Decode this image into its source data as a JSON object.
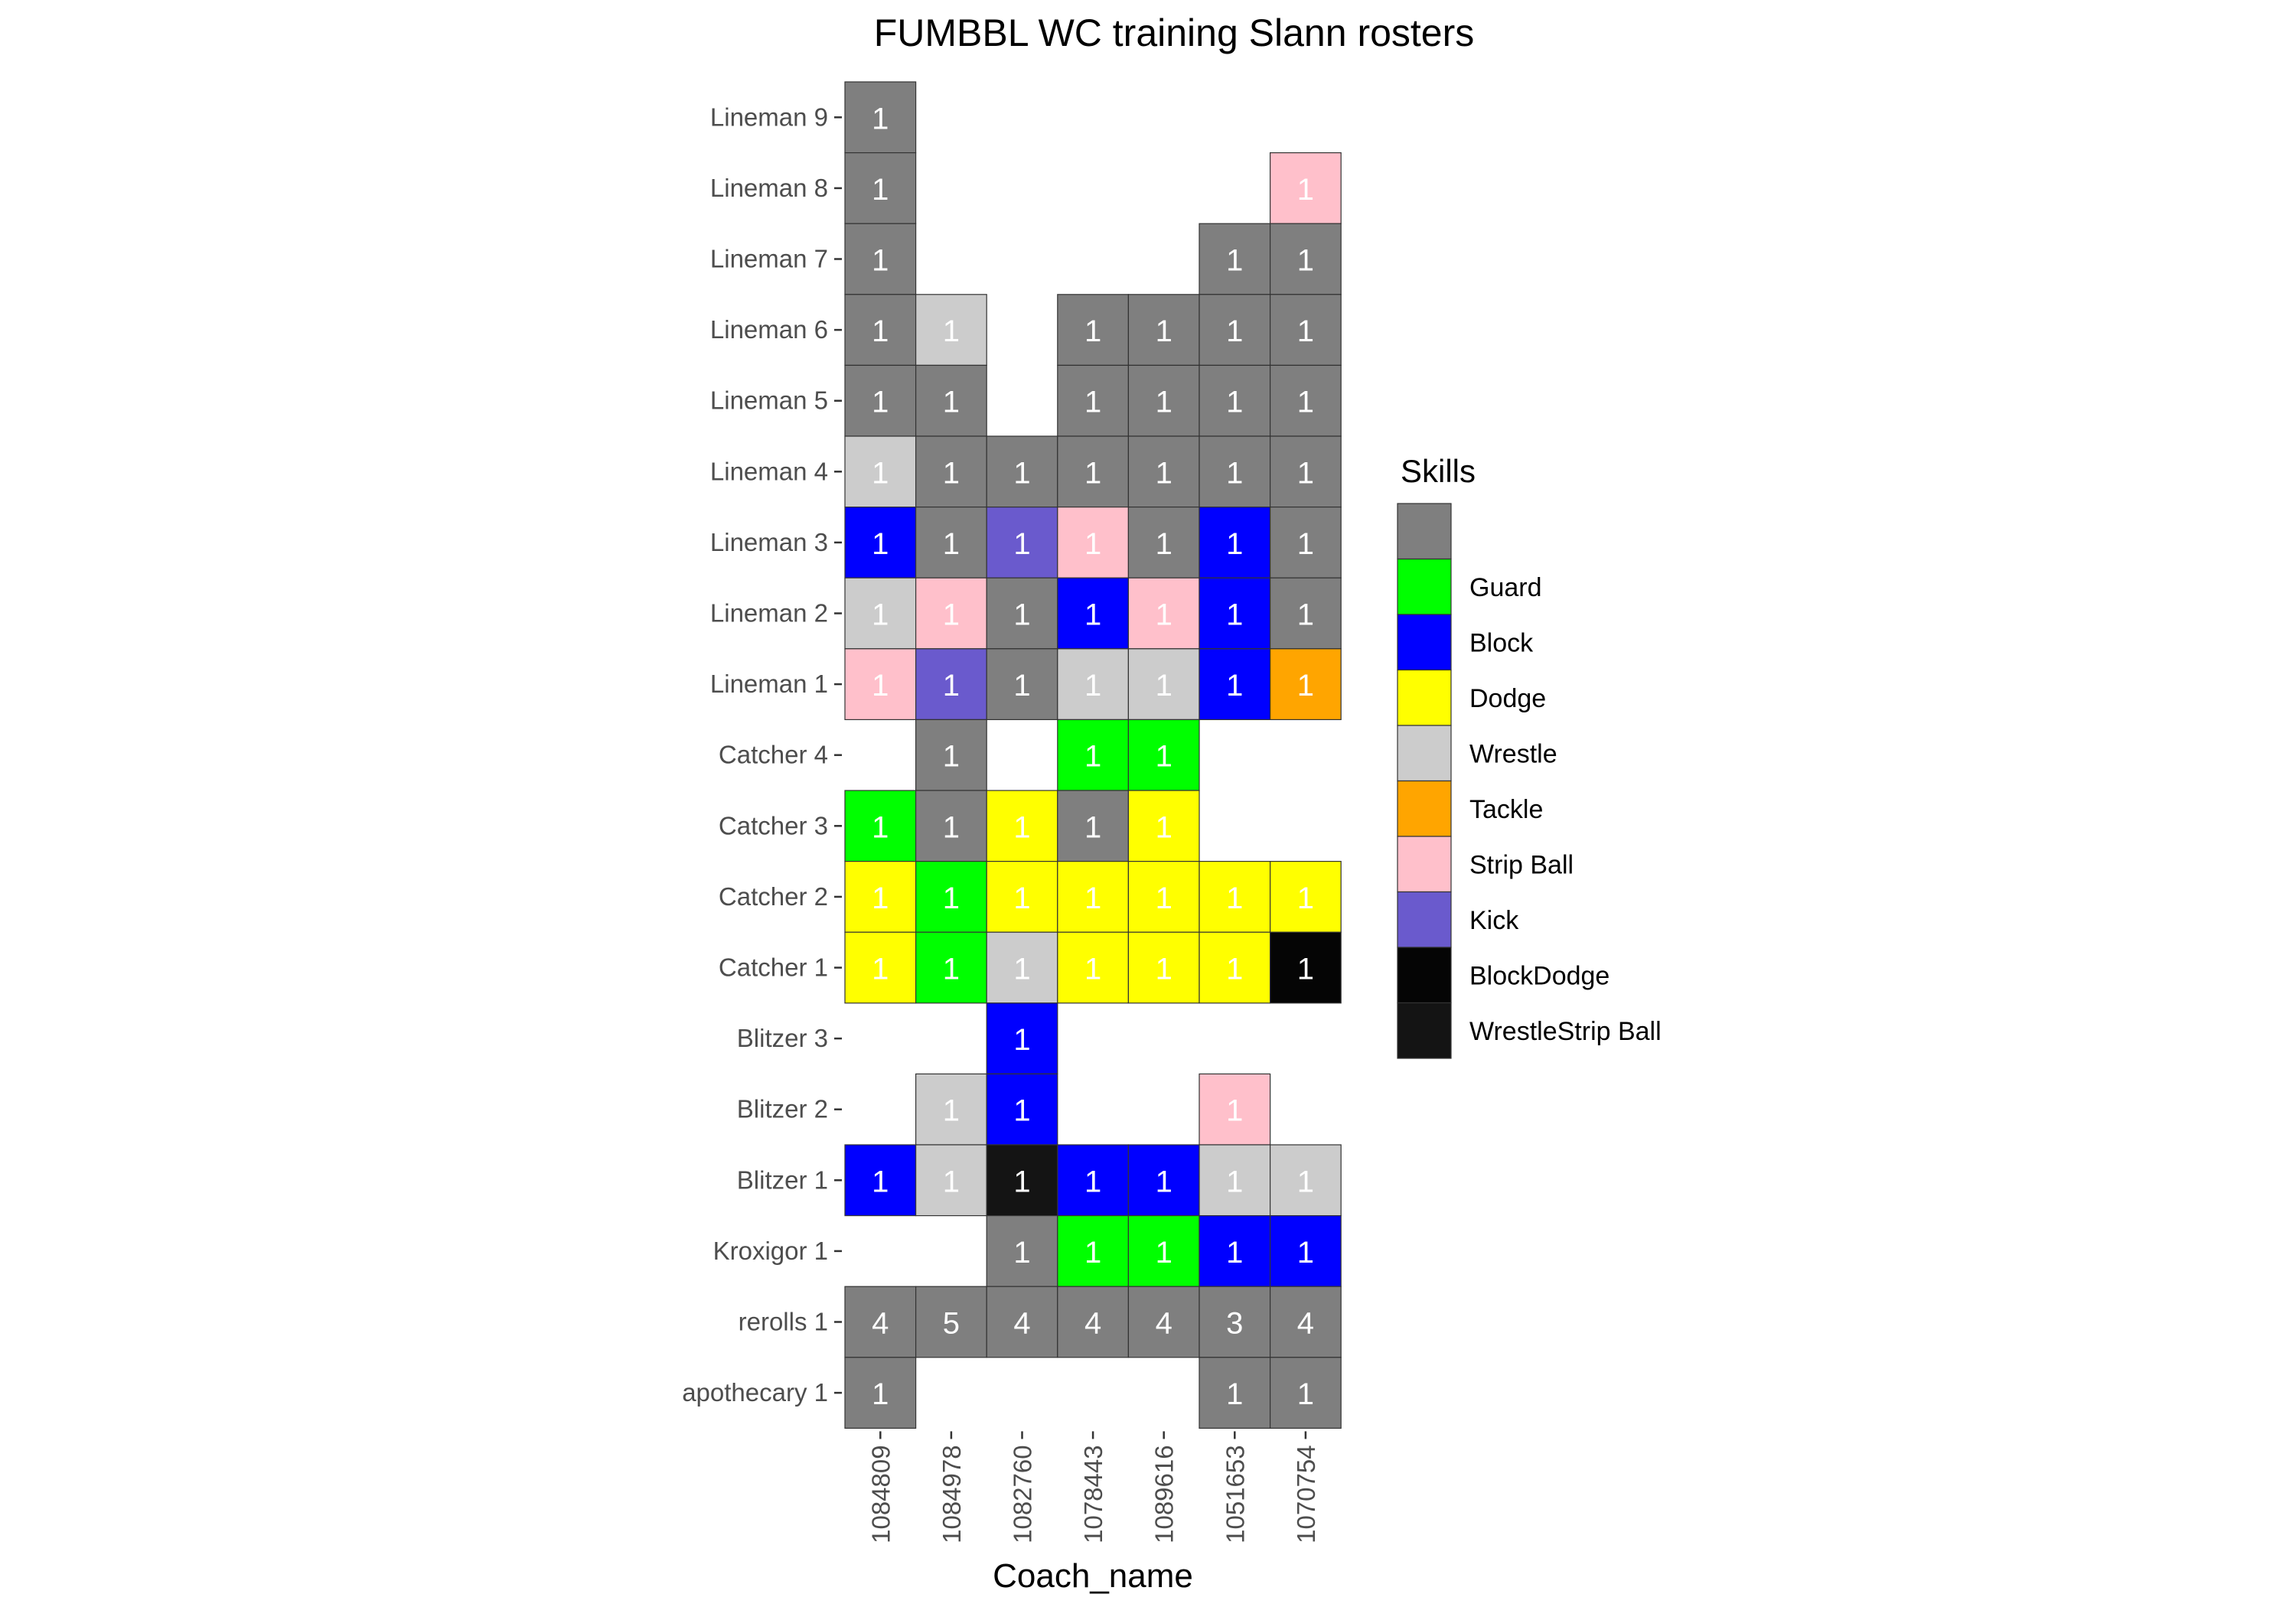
{
  "chart_data": {
    "type": "heatmap",
    "title": "FUMBBL WC training Slann rosters",
    "xlabel": "Coach_name",
    "ylabel": "",
    "x_categories": [
      "1084809",
      "1084978",
      "1082760",
      "1078443",
      "1089616",
      "1051653",
      "1070754"
    ],
    "y_categories": [
      "Lineman 9",
      "Lineman 8",
      "Lineman 7",
      "Lineman 6",
      "Lineman 5",
      "Lineman 4",
      "Lineman 3",
      "Lineman 2",
      "Lineman 1",
      "Catcher 4",
      "Catcher 3",
      "Catcher 2",
      "Catcher 1",
      "Blitzer 3",
      "Blitzer 2",
      "Blitzer 1",
      "Kroxigor 1",
      "rerolls 1",
      "apothecary 1"
    ],
    "legend": {
      "title": "Skills",
      "position": "right",
      "entries": [
        {
          "key": "none",
          "label": "",
          "color": "#7f7f7f"
        },
        {
          "key": "Guard",
          "label": "Guard",
          "color": "#00ff00"
        },
        {
          "key": "Block",
          "label": "Block",
          "color": "#0000ff"
        },
        {
          "key": "Dodge",
          "label": "Dodge",
          "color": "#ffff00"
        },
        {
          "key": "Wrestle",
          "label": "Wrestle",
          "color": "#cccccc"
        },
        {
          "key": "Tackle",
          "label": "Tackle",
          "color": "#ffa500"
        },
        {
          "key": "Strip Ball",
          "label": "Strip Ball",
          "color": "#ffc0cb"
        },
        {
          "key": "Kick",
          "label": "Kick",
          "color": "#6a5acd"
        },
        {
          "key": "BlockDodge",
          "label": "BlockDodge",
          "color": "#050505"
        },
        {
          "key": "WrestleStrip Ball",
          "label": "WrestleStrip Ball",
          "color": "#141414"
        }
      ]
    },
    "cells": [
      {
        "x": "1084809",
        "y": "Lineman 9",
        "value": 1,
        "skill": "none"
      },
      {
        "x": "1084809",
        "y": "Lineman 8",
        "value": 1,
        "skill": "none"
      },
      {
        "x": "1070754",
        "y": "Lineman 8",
        "value": 1,
        "skill": "Strip Ball"
      },
      {
        "x": "1084809",
        "y": "Lineman 7",
        "value": 1,
        "skill": "none"
      },
      {
        "x": "1051653",
        "y": "Lineman 7",
        "value": 1,
        "skill": "none"
      },
      {
        "x": "1070754",
        "y": "Lineman 7",
        "value": 1,
        "skill": "none"
      },
      {
        "x": "1084809",
        "y": "Lineman 6",
        "value": 1,
        "skill": "none"
      },
      {
        "x": "1084978",
        "y": "Lineman 6",
        "value": 1,
        "skill": "Wrestle"
      },
      {
        "x": "1078443",
        "y": "Lineman 6",
        "value": 1,
        "skill": "none"
      },
      {
        "x": "1089616",
        "y": "Lineman 6",
        "value": 1,
        "skill": "none"
      },
      {
        "x": "1051653",
        "y": "Lineman 6",
        "value": 1,
        "skill": "none"
      },
      {
        "x": "1070754",
        "y": "Lineman 6",
        "value": 1,
        "skill": "none"
      },
      {
        "x": "1084809",
        "y": "Lineman 5",
        "value": 1,
        "skill": "none"
      },
      {
        "x": "1084978",
        "y": "Lineman 5",
        "value": 1,
        "skill": "none"
      },
      {
        "x": "1078443",
        "y": "Lineman 5",
        "value": 1,
        "skill": "none"
      },
      {
        "x": "1089616",
        "y": "Lineman 5",
        "value": 1,
        "skill": "none"
      },
      {
        "x": "1051653",
        "y": "Lineman 5",
        "value": 1,
        "skill": "none"
      },
      {
        "x": "1070754",
        "y": "Lineman 5",
        "value": 1,
        "skill": "none"
      },
      {
        "x": "1084809",
        "y": "Lineman 4",
        "value": 1,
        "skill": "Wrestle"
      },
      {
        "x": "1084978",
        "y": "Lineman 4",
        "value": 1,
        "skill": "none"
      },
      {
        "x": "1082760",
        "y": "Lineman 4",
        "value": 1,
        "skill": "none"
      },
      {
        "x": "1078443",
        "y": "Lineman 4",
        "value": 1,
        "skill": "none"
      },
      {
        "x": "1089616",
        "y": "Lineman 4",
        "value": 1,
        "skill": "none"
      },
      {
        "x": "1051653",
        "y": "Lineman 4",
        "value": 1,
        "skill": "none"
      },
      {
        "x": "1070754",
        "y": "Lineman 4",
        "value": 1,
        "skill": "none"
      },
      {
        "x": "1084809",
        "y": "Lineman 3",
        "value": 1,
        "skill": "Block"
      },
      {
        "x": "1084978",
        "y": "Lineman 3",
        "value": 1,
        "skill": "none"
      },
      {
        "x": "1082760",
        "y": "Lineman 3",
        "value": 1,
        "skill": "Kick"
      },
      {
        "x": "1078443",
        "y": "Lineman 3",
        "value": 1,
        "skill": "Strip Ball"
      },
      {
        "x": "1089616",
        "y": "Lineman 3",
        "value": 1,
        "skill": "none"
      },
      {
        "x": "1051653",
        "y": "Lineman 3",
        "value": 1,
        "skill": "Block"
      },
      {
        "x": "1070754",
        "y": "Lineman 3",
        "value": 1,
        "skill": "none"
      },
      {
        "x": "1084809",
        "y": "Lineman 2",
        "value": 1,
        "skill": "Wrestle"
      },
      {
        "x": "1084978",
        "y": "Lineman 2",
        "value": 1,
        "skill": "Strip Ball"
      },
      {
        "x": "1082760",
        "y": "Lineman 2",
        "value": 1,
        "skill": "none"
      },
      {
        "x": "1078443",
        "y": "Lineman 2",
        "value": 1,
        "skill": "Block"
      },
      {
        "x": "1089616",
        "y": "Lineman 2",
        "value": 1,
        "skill": "Strip Ball"
      },
      {
        "x": "1051653",
        "y": "Lineman 2",
        "value": 1,
        "skill": "Block"
      },
      {
        "x": "1070754",
        "y": "Lineman 2",
        "value": 1,
        "skill": "none"
      },
      {
        "x": "1084809",
        "y": "Lineman 1",
        "value": 1,
        "skill": "Strip Ball"
      },
      {
        "x": "1084978",
        "y": "Lineman 1",
        "value": 1,
        "skill": "Kick"
      },
      {
        "x": "1082760",
        "y": "Lineman 1",
        "value": 1,
        "skill": "none"
      },
      {
        "x": "1078443",
        "y": "Lineman 1",
        "value": 1,
        "skill": "Wrestle"
      },
      {
        "x": "1089616",
        "y": "Lineman 1",
        "value": 1,
        "skill": "Wrestle"
      },
      {
        "x": "1051653",
        "y": "Lineman 1",
        "value": 1,
        "skill": "Block"
      },
      {
        "x": "1070754",
        "y": "Lineman 1",
        "value": 1,
        "skill": "Tackle"
      },
      {
        "x": "1084978",
        "y": "Catcher 4",
        "value": 1,
        "skill": "none"
      },
      {
        "x": "1078443",
        "y": "Catcher 4",
        "value": 1,
        "skill": "Guard"
      },
      {
        "x": "1089616",
        "y": "Catcher 4",
        "value": 1,
        "skill": "Guard"
      },
      {
        "x": "1084809",
        "y": "Catcher 3",
        "value": 1,
        "skill": "Guard"
      },
      {
        "x": "1084978",
        "y": "Catcher 3",
        "value": 1,
        "skill": "none"
      },
      {
        "x": "1082760",
        "y": "Catcher 3",
        "value": 1,
        "skill": "Dodge"
      },
      {
        "x": "1078443",
        "y": "Catcher 3",
        "value": 1,
        "skill": "none"
      },
      {
        "x": "1089616",
        "y": "Catcher 3",
        "value": 1,
        "skill": "Dodge"
      },
      {
        "x": "1084809",
        "y": "Catcher 2",
        "value": 1,
        "skill": "Dodge"
      },
      {
        "x": "1084978",
        "y": "Catcher 2",
        "value": 1,
        "skill": "Guard"
      },
      {
        "x": "1082760",
        "y": "Catcher 2",
        "value": 1,
        "skill": "Dodge"
      },
      {
        "x": "1078443",
        "y": "Catcher 2",
        "value": 1,
        "skill": "Dodge"
      },
      {
        "x": "1089616",
        "y": "Catcher 2",
        "value": 1,
        "skill": "Dodge"
      },
      {
        "x": "1051653",
        "y": "Catcher 2",
        "value": 1,
        "skill": "Dodge"
      },
      {
        "x": "1070754",
        "y": "Catcher 2",
        "value": 1,
        "skill": "Dodge"
      },
      {
        "x": "1084809",
        "y": "Catcher 1",
        "value": 1,
        "skill": "Dodge"
      },
      {
        "x": "1084978",
        "y": "Catcher 1",
        "value": 1,
        "skill": "Guard"
      },
      {
        "x": "1082760",
        "y": "Catcher 1",
        "value": 1,
        "skill": "Wrestle"
      },
      {
        "x": "1078443",
        "y": "Catcher 1",
        "value": 1,
        "skill": "Dodge"
      },
      {
        "x": "1089616",
        "y": "Catcher 1",
        "value": 1,
        "skill": "Dodge"
      },
      {
        "x": "1051653",
        "y": "Catcher 1",
        "value": 1,
        "skill": "Dodge"
      },
      {
        "x": "1070754",
        "y": "Catcher 1",
        "value": 1,
        "skill": "BlockDodge"
      },
      {
        "x": "1082760",
        "y": "Blitzer 3",
        "value": 1,
        "skill": "Block"
      },
      {
        "x": "1084978",
        "y": "Blitzer 2",
        "value": 1,
        "skill": "Wrestle"
      },
      {
        "x": "1082760",
        "y": "Blitzer 2",
        "value": 1,
        "skill": "Block"
      },
      {
        "x": "1051653",
        "y": "Blitzer 2",
        "value": 1,
        "skill": "Strip Ball"
      },
      {
        "x": "1084809",
        "y": "Blitzer 1",
        "value": 1,
        "skill": "Block"
      },
      {
        "x": "1084978",
        "y": "Blitzer 1",
        "value": 1,
        "skill": "Wrestle"
      },
      {
        "x": "1082760",
        "y": "Blitzer 1",
        "value": 1,
        "skill": "WrestleStrip Ball"
      },
      {
        "x": "1078443",
        "y": "Blitzer 1",
        "value": 1,
        "skill": "Block"
      },
      {
        "x": "1089616",
        "y": "Blitzer 1",
        "value": 1,
        "skill": "Block"
      },
      {
        "x": "1051653",
        "y": "Blitzer 1",
        "value": 1,
        "skill": "Wrestle"
      },
      {
        "x": "1070754",
        "y": "Blitzer 1",
        "value": 1,
        "skill": "Wrestle"
      },
      {
        "x": "1082760",
        "y": "Kroxigor 1",
        "value": 1,
        "skill": "none"
      },
      {
        "x": "1078443",
        "y": "Kroxigor 1",
        "value": 1,
        "skill": "Guard"
      },
      {
        "x": "1089616",
        "y": "Kroxigor 1",
        "value": 1,
        "skill": "Guard"
      },
      {
        "x": "1051653",
        "y": "Kroxigor 1",
        "value": 1,
        "skill": "Block"
      },
      {
        "x": "1070754",
        "y": "Kroxigor 1",
        "value": 1,
        "skill": "Block"
      },
      {
        "x": "1084809",
        "y": "rerolls 1",
        "value": 4,
        "skill": "none"
      },
      {
        "x": "1084978",
        "y": "rerolls 1",
        "value": 5,
        "skill": "none"
      },
      {
        "x": "1082760",
        "y": "rerolls 1",
        "value": 4,
        "skill": "none"
      },
      {
        "x": "1078443",
        "y": "rerolls 1",
        "value": 4,
        "skill": "none"
      },
      {
        "x": "1089616",
        "y": "rerolls 1",
        "value": 4,
        "skill": "none"
      },
      {
        "x": "1051653",
        "y": "rerolls 1",
        "value": 3,
        "skill": "none"
      },
      {
        "x": "1070754",
        "y": "rerolls 1",
        "value": 4,
        "skill": "none"
      },
      {
        "x": "1084809",
        "y": "apothecary 1",
        "value": 1,
        "skill": "none"
      },
      {
        "x": "1051653",
        "y": "apothecary 1",
        "value": 1,
        "skill": "none"
      },
      {
        "x": "1070754",
        "y": "apothecary 1",
        "value": 1,
        "skill": "none"
      }
    ]
  }
}
